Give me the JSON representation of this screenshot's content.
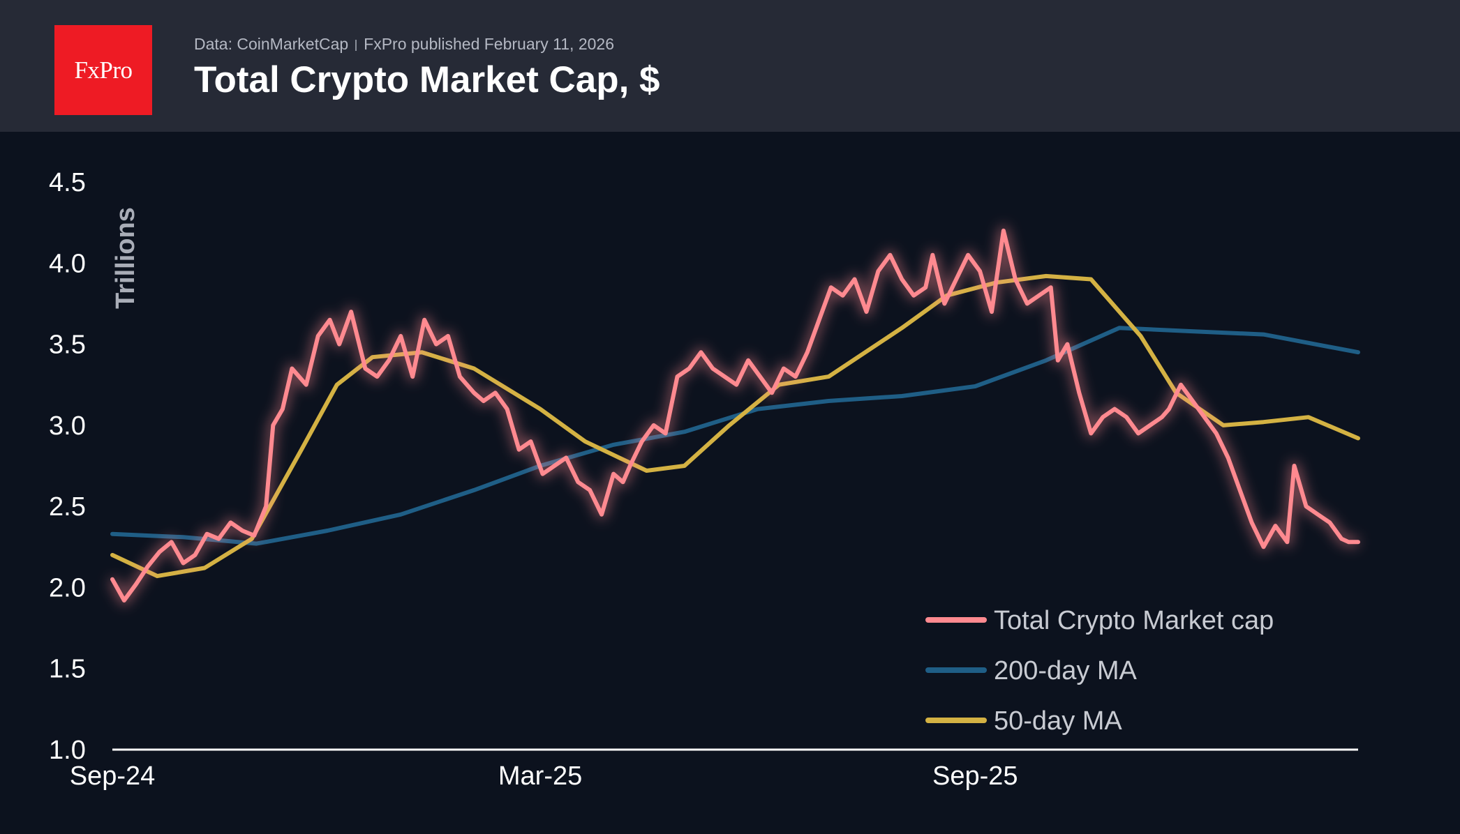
{
  "header": {
    "logo_text": "FxPro",
    "source": "Data: CoinMarketCap",
    "published": "FxPro published February 11, 2026",
    "title": "Total Crypto Market Cap, $"
  },
  "colors": {
    "background": "#0c121e",
    "header_bg": "#262a36",
    "logo_bg": "#ee1b24",
    "market_cap": "#ff8a90",
    "ma200": "#1f5e86",
    "ma50": "#d4b243"
  },
  "chart_data": {
    "type": "line",
    "ylabel": "Trillions",
    "ylim": [
      1.0,
      4.5
    ],
    "yticks": [
      "1.0",
      "1.5",
      "2.0",
      "2.5",
      "3.0",
      "3.5",
      "4.0",
      "4.5"
    ],
    "xticks": [
      {
        "label": "Sep-24",
        "date": "2024-09-01"
      },
      {
        "label": "Mar-25",
        "date": "2025-03-01"
      },
      {
        "label": "Sep-25",
        "date": "2025-09-01"
      }
    ],
    "xlim": [
      "2024-09-01",
      "2026-02-10"
    ],
    "grid": false,
    "legend_position": "bottom-right",
    "series": [
      {
        "name": "Total Crypto Market cap",
        "color": "#ff8a90",
        "x": [
          "2024-09-01",
          "2024-09-06",
          "2024-09-11",
          "2024-09-16",
          "2024-09-21",
          "2024-09-26",
          "2024-10-01",
          "2024-10-06",
          "2024-10-11",
          "2024-10-16",
          "2024-10-21",
          "2024-10-26",
          "2024-10-31",
          "2024-11-05",
          "2024-11-08",
          "2024-11-12",
          "2024-11-16",
          "2024-11-22",
          "2024-11-27",
          "2024-12-02",
          "2024-12-06",
          "2024-12-11",
          "2024-12-17",
          "2024-12-22",
          "2024-12-27",
          "2025-01-01",
          "2025-01-06",
          "2025-01-11",
          "2025-01-16",
          "2025-01-21",
          "2025-01-26",
          "2025-02-01",
          "2025-02-05",
          "2025-02-10",
          "2025-02-15",
          "2025-02-20",
          "2025-02-25",
          "2025-03-02",
          "2025-03-07",
          "2025-03-12",
          "2025-03-17",
          "2025-03-22",
          "2025-03-27",
          "2025-04-01",
          "2025-04-05",
          "2025-04-08",
          "2025-04-13",
          "2025-04-18",
          "2025-04-23",
          "2025-04-28",
          "2025-05-03",
          "2025-05-08",
          "2025-05-13",
          "2025-05-18",
          "2025-05-23",
          "2025-05-28",
          "2025-06-02",
          "2025-06-07",
          "2025-06-12",
          "2025-06-17",
          "2025-06-22",
          "2025-06-27",
          "2025-07-02",
          "2025-07-07",
          "2025-07-12",
          "2025-07-17",
          "2025-07-22",
          "2025-07-27",
          "2025-08-01",
          "2025-08-06",
          "2025-08-11",
          "2025-08-14",
          "2025-08-19",
          "2025-08-24",
          "2025-08-29",
          "2025-09-03",
          "2025-09-08",
          "2025-09-13",
          "2025-09-18",
          "2025-09-23",
          "2025-09-28",
          "2025-10-03",
          "2025-10-06",
          "2025-10-10",
          "2025-10-15",
          "2025-10-20",
          "2025-10-25",
          "2025-10-30",
          "2025-11-04",
          "2025-11-09",
          "2025-11-14",
          "2025-11-19",
          "2025-11-22",
          "2025-11-27",
          "2025-12-02",
          "2025-12-07",
          "2025-12-12",
          "2025-12-17",
          "2025-12-22",
          "2025-12-27",
          "2026-01-01",
          "2026-01-06",
          "2026-01-11",
          "2026-01-14",
          "2026-01-19",
          "2026-01-24",
          "2026-01-29",
          "2026-02-03",
          "2026-02-06",
          "2026-02-10"
        ],
        "y": [
          2.05,
          1.92,
          2.02,
          2.13,
          2.22,
          2.28,
          2.15,
          2.2,
          2.33,
          2.3,
          2.4,
          2.35,
          2.32,
          2.5,
          3.0,
          3.1,
          3.35,
          3.25,
          3.55,
          3.65,
          3.5,
          3.7,
          3.35,
          3.3,
          3.4,
          3.55,
          3.3,
          3.65,
          3.5,
          3.55,
          3.3,
          3.2,
          3.15,
          3.2,
          3.1,
          2.85,
          2.9,
          2.7,
          2.75,
          2.8,
          2.65,
          2.6,
          2.45,
          2.7,
          2.65,
          2.75,
          2.9,
          3.0,
          2.95,
          3.3,
          3.35,
          3.45,
          3.35,
          3.3,
          3.25,
          3.4,
          3.3,
          3.2,
          3.35,
          3.3,
          3.45,
          3.65,
          3.85,
          3.8,
          3.9,
          3.7,
          3.95,
          4.05,
          3.9,
          3.8,
          3.85,
          4.05,
          3.75,
          3.9,
          4.05,
          3.95,
          3.7,
          4.2,
          3.9,
          3.75,
          3.8,
          3.85,
          3.4,
          3.5,
          3.2,
          2.95,
          3.05,
          3.1,
          3.05,
          2.95,
          3.0,
          3.05,
          3.1,
          3.25,
          3.15,
          3.05,
          2.95,
          2.8,
          2.6,
          2.4,
          2.25,
          2.38,
          2.28,
          2.75,
          2.5,
          2.45,
          2.4,
          2.3,
          2.28,
          2.28
        ]
      },
      {
        "name": "200-day MA",
        "color": "#1f5e86",
        "x": [
          "2024-09-01",
          "2024-10-01",
          "2024-11-01",
          "2024-12-01",
          "2025-01-01",
          "2025-02-01",
          "2025-03-01",
          "2025-04-01",
          "2025-05-01",
          "2025-06-01",
          "2025-07-01",
          "2025-08-01",
          "2025-09-01",
          "2025-10-01",
          "2025-11-01",
          "2025-12-01",
          "2026-01-01",
          "2026-02-10"
        ],
        "y": [
          2.33,
          2.31,
          2.27,
          2.35,
          2.45,
          2.6,
          2.75,
          2.88,
          2.96,
          3.1,
          3.15,
          3.18,
          3.24,
          3.4,
          3.6,
          3.58,
          3.56,
          3.45
        ]
      },
      {
        "name": "50-day MA",
        "color": "#d4b243",
        "x": [
          "2024-09-01",
          "2024-09-20",
          "2024-10-10",
          "2024-10-30",
          "2024-11-20",
          "2024-12-05",
          "2024-12-20",
          "2025-01-10",
          "2025-02-01",
          "2025-03-01",
          "2025-03-20",
          "2025-04-15",
          "2025-05-01",
          "2025-05-20",
          "2025-06-10",
          "2025-07-01",
          "2025-08-01",
          "2025-08-20",
          "2025-09-10",
          "2025-10-01",
          "2025-10-20",
          "2025-11-10",
          "2025-11-25",
          "2025-12-15",
          "2026-01-01",
          "2026-01-20",
          "2026-02-10"
        ],
        "y": [
          2.2,
          2.07,
          2.12,
          2.3,
          2.85,
          3.25,
          3.42,
          3.45,
          3.35,
          3.1,
          2.9,
          2.72,
          2.75,
          3.0,
          3.25,
          3.3,
          3.6,
          3.8,
          3.88,
          3.92,
          3.9,
          3.55,
          3.2,
          3.0,
          3.02,
          3.05,
          2.92
        ]
      }
    ]
  }
}
